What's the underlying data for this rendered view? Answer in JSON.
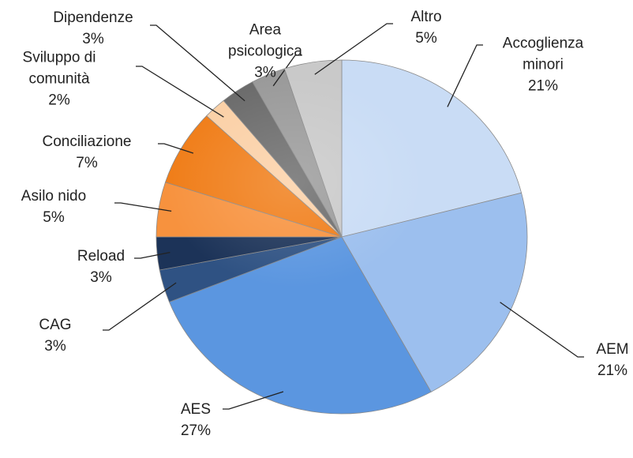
{
  "chart_data": {
    "type": "pie",
    "categories": [
      "Accoglienza minori",
      "AEM",
      "AES",
      "CAG",
      "Reload",
      "Asilo nido",
      "Conciliazione",
      "Sviluppo di comunità",
      "Dipendenze",
      "Area psicologica",
      "Altro"
    ],
    "values": [
      21,
      21,
      27,
      3,
      3,
      5,
      7,
      2,
      3,
      3,
      5
    ],
    "value_labels": [
      "21%",
      "21%",
      "27%",
      "3%",
      "3%",
      "5%",
      "7%",
      "2%",
      "3%",
      "3%",
      "5%"
    ],
    "colors": [
      "#c9dcf5",
      "#9cbfee",
      "#5b96e0",
      "#2f5283",
      "#1c3358",
      "#f7923e",
      "#f07d18",
      "#fbd0a6",
      "#6b6b6b",
      "#9a9a9a",
      "#c9c9c9"
    ]
  }
}
